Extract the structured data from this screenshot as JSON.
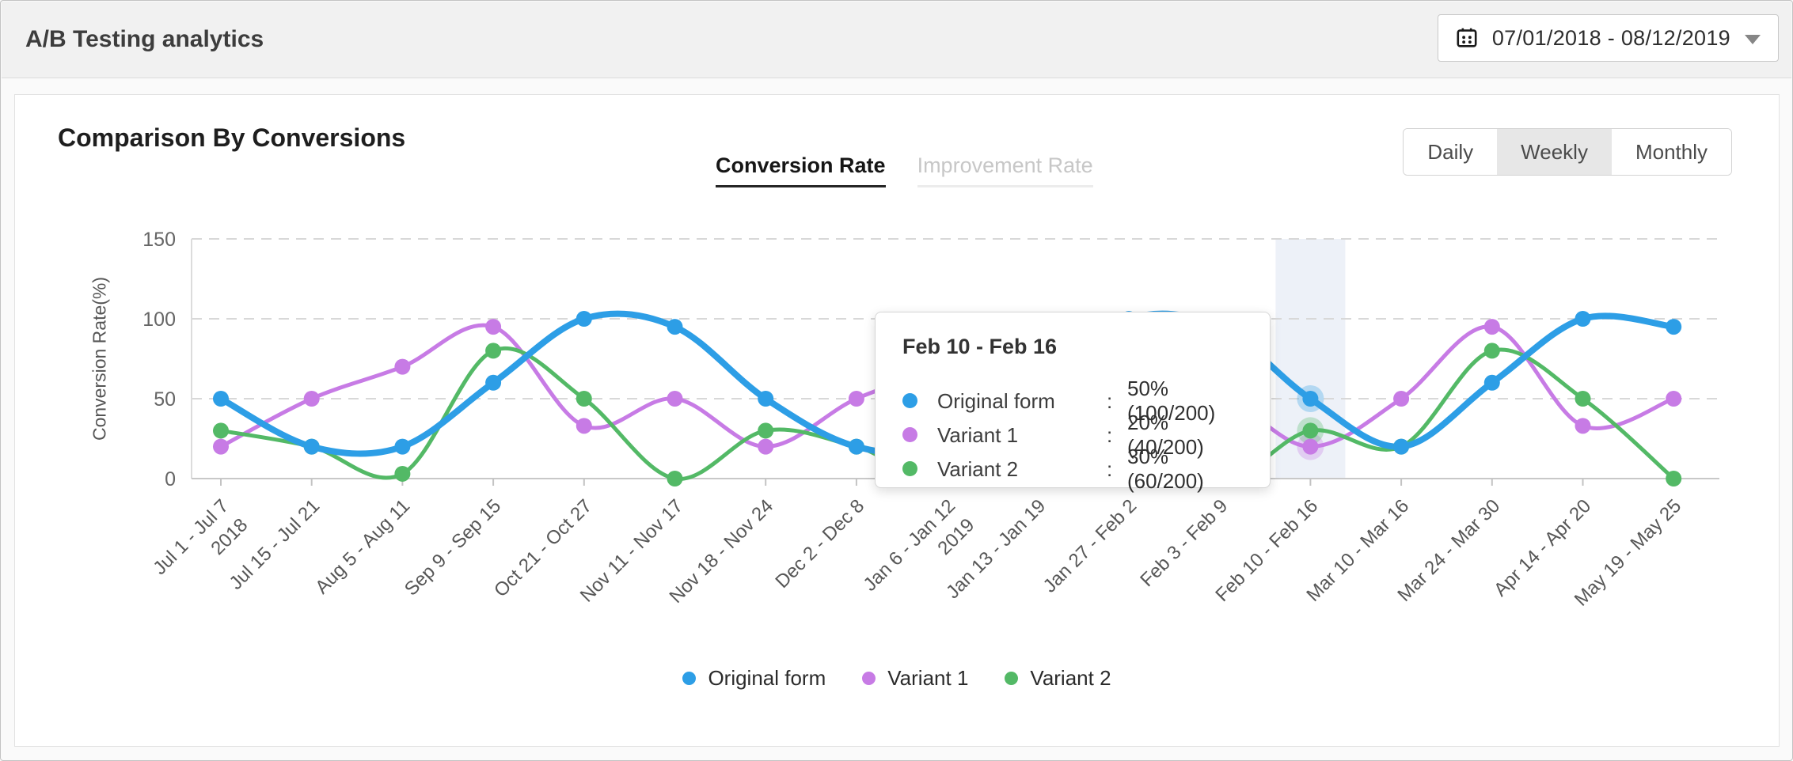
{
  "header": {
    "title": "A/B Testing analytics",
    "date_range": "07/01/2018 - 08/12/2019"
  },
  "panel": {
    "title": "Comparison By Conversions",
    "tabs": [
      {
        "label": "Conversion Rate",
        "active": true
      },
      {
        "label": "Improvement Rate",
        "active": false
      }
    ],
    "granularity": {
      "options": [
        "Daily",
        "Weekly",
        "Monthly"
      ],
      "selected": "Weekly"
    }
  },
  "chart_data": {
    "type": "line",
    "ylabel": "Conversion Rate(%)",
    "ylim": [
      0,
      150
    ],
    "yticks": [
      0,
      50,
      100,
      150
    ],
    "grid": "horizontal-dashed",
    "legend_position": "bottom",
    "categories": [
      "Jul 1 - Jul 7",
      "Jul 15 - Jul 21",
      "Aug 5 - Aug 11",
      "Sep 9 - Sep 15",
      "Oct 21 - Oct 27",
      "Nov 11 - Nov 17",
      "Nov 18 - Nov 24",
      "Dec 2 - Dec 8",
      "Jan 6 - Jan 12",
      "Jan 13 - Jan 19",
      "Jan 27 - Feb 2",
      "Feb 3 - Feb 9",
      "Feb 10 - Feb 16",
      "Mar 10 - Mar 16",
      "Mar 24 - Mar 30",
      "Apr 14 - Apr 20",
      "May 19 - May 25"
    ],
    "year_markers": {
      "0": "2018",
      "8": "2019"
    },
    "series": [
      {
        "name": "Original form",
        "color": "#2D9EE6",
        "values": [
          50,
          20,
          20,
          60,
          100,
          95,
          50,
          20,
          20,
          60,
          100,
          95,
          50,
          20,
          60,
          100,
          95
        ]
      },
      {
        "name": "Variant 1",
        "color": "#C77BE5",
        "values": [
          20,
          50,
          70,
          95,
          33,
          50,
          20,
          50,
          70,
          95,
          33,
          50,
          20,
          50,
          95,
          33,
          50
        ]
      },
      {
        "name": "Variant 2",
        "color": "#53B966",
        "values": [
          30,
          20,
          3,
          80,
          50,
          0,
          30,
          20,
          3,
          80,
          50,
          0,
          30,
          20,
          80,
          50,
          0
        ]
      }
    ],
    "highlighted_index": 12,
    "highlight_band_color": "#EDF1F8"
  },
  "tooltip": {
    "title": "Feb 10 - Feb 16",
    "separator": ":",
    "rows": [
      {
        "name": "Original form",
        "value": "50% (100/200)"
      },
      {
        "name": "Variant 1",
        "value": "20% (40/200)"
      },
      {
        "name": "Variant 2",
        "value": "30% (60/200)"
      }
    ]
  }
}
